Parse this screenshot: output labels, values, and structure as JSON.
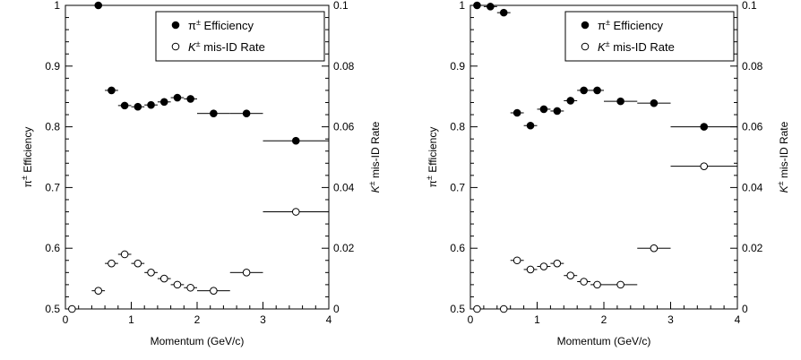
{
  "chart_data": [
    {
      "type": "scatter",
      "title": "",
      "xlabel": "Momentum (GeV/c)",
      "ylabel_left": "π± Efficiency",
      "ylabel_right": "K± mis-ID Rate",
      "xlim": [
        0,
        4
      ],
      "ylim_left": [
        0.5,
        1.0
      ],
      "ylim_right": [
        0,
        0.1
      ],
      "x_ticks": [
        "0",
        "1",
        "2",
        "3",
        "4"
      ],
      "y_ticks_left": [
        "0.5",
        "0.6",
        "0.7",
        "0.8",
        "0.9",
        "1"
      ],
      "y_ticks_right": [
        "0",
        "0.02",
        "0.04",
        "0.06",
        "0.08",
        "0.1"
      ],
      "grid": false,
      "legend_position": "top-right",
      "series": [
        {
          "name": "π± Efficiency",
          "marker": "filled-circle",
          "axis": "left",
          "points": [
            {
              "x": 0.5,
              "y": 1.0,
              "xerr": 0.1
            },
            {
              "x": 0.7,
              "y": 0.86,
              "xerr": 0.1
            },
            {
              "x": 0.9,
              "y": 0.835,
              "xerr": 0.1
            },
            {
              "x": 1.1,
              "y": 0.833,
              "xerr": 0.1
            },
            {
              "x": 1.3,
              "y": 0.836,
              "xerr": 0.1
            },
            {
              "x": 1.5,
              "y": 0.841,
              "xerr": 0.1
            },
            {
              "x": 1.7,
              "y": 0.848,
              "xerr": 0.1
            },
            {
              "x": 1.9,
              "y": 0.846,
              "xerr": 0.1
            },
            {
              "x": 2.25,
              "y": 0.822,
              "xerr": 0.25
            },
            {
              "x": 2.75,
              "y": 0.822,
              "xerr": 0.25
            },
            {
              "x": 3.5,
              "y": 0.777,
              "xerr": 0.5
            }
          ]
        },
        {
          "name": "K± mis-ID Rate",
          "marker": "open-circle",
          "axis": "right",
          "points": [
            {
              "x": 0.1,
              "y": 0.0,
              "xerr": 0.1
            },
            {
              "x": 0.5,
              "y": 0.006,
              "xerr": 0.1
            },
            {
              "x": 0.7,
              "y": 0.015,
              "xerr": 0.1
            },
            {
              "x": 0.9,
              "y": 0.018,
              "xerr": 0.1
            },
            {
              "x": 1.1,
              "y": 0.015,
              "xerr": 0.1
            },
            {
              "x": 1.3,
              "y": 0.012,
              "xerr": 0.1
            },
            {
              "x": 1.5,
              "y": 0.01,
              "xerr": 0.1
            },
            {
              "x": 1.7,
              "y": 0.008,
              "xerr": 0.1
            },
            {
              "x": 1.9,
              "y": 0.007,
              "xerr": 0.1
            },
            {
              "x": 2.25,
              "y": 0.006,
              "xerr": 0.25
            },
            {
              "x": 2.75,
              "y": 0.012,
              "xerr": 0.25
            },
            {
              "x": 3.5,
              "y": 0.032,
              "xerr": 0.5
            }
          ]
        }
      ]
    },
    {
      "type": "scatter",
      "title": "",
      "xlabel": "Momentum (GeV/c)",
      "ylabel_left": "π± Efficiency",
      "ylabel_right": "K± mis-ID Rate",
      "xlim": [
        0,
        4
      ],
      "ylim_left": [
        0.5,
        1.0
      ],
      "ylim_right": [
        0,
        0.1
      ],
      "x_ticks": [
        "0",
        "1",
        "2",
        "3",
        "4"
      ],
      "y_ticks_left": [
        "0.5",
        "0.6",
        "0.7",
        "0.8",
        "0.9",
        "1"
      ],
      "y_ticks_right": [
        "0",
        "0.02",
        "0.04",
        "0.06",
        "0.08",
        "0.1"
      ],
      "grid": false,
      "legend_position": "top-right",
      "series": [
        {
          "name": "π± Efficiency",
          "marker": "filled-circle",
          "axis": "left",
          "points": [
            {
              "x": 0.1,
              "y": 1.0,
              "xerr": 0.1
            },
            {
              "x": 0.3,
              "y": 0.998,
              "xerr": 0.1
            },
            {
              "x": 0.5,
              "y": 0.988,
              "xerr": 0.1
            },
            {
              "x": 0.7,
              "y": 0.823,
              "xerr": 0.1
            },
            {
              "x": 0.9,
              "y": 0.802,
              "xerr": 0.1
            },
            {
              "x": 1.1,
              "y": 0.829,
              "xerr": 0.1
            },
            {
              "x": 1.3,
              "y": 0.826,
              "xerr": 0.1
            },
            {
              "x": 1.5,
              "y": 0.843,
              "xerr": 0.1
            },
            {
              "x": 1.7,
              "y": 0.86,
              "xerr": 0.1
            },
            {
              "x": 1.9,
              "y": 0.86,
              "xerr": 0.1
            },
            {
              "x": 2.25,
              "y": 0.842,
              "xerr": 0.25
            },
            {
              "x": 2.75,
              "y": 0.839,
              "xerr": 0.25
            },
            {
              "x": 3.5,
              "y": 0.8,
              "xerr": 0.5
            }
          ]
        },
        {
          "name": "K± mis-ID Rate",
          "marker": "open-circle",
          "axis": "right",
          "points": [
            {
              "x": 0.1,
              "y": 0.0,
              "xerr": 0.1
            },
            {
              "x": 0.5,
              "y": 0.0,
              "xerr": 0.1
            },
            {
              "x": 0.7,
              "y": 0.016,
              "xerr": 0.1
            },
            {
              "x": 0.9,
              "y": 0.013,
              "xerr": 0.1
            },
            {
              "x": 1.1,
              "y": 0.014,
              "xerr": 0.1
            },
            {
              "x": 1.3,
              "y": 0.015,
              "xerr": 0.1
            },
            {
              "x": 1.5,
              "y": 0.011,
              "xerr": 0.1
            },
            {
              "x": 1.7,
              "y": 0.009,
              "xerr": 0.1
            },
            {
              "x": 1.9,
              "y": 0.008,
              "xerr": 0.1
            },
            {
              "x": 2.25,
              "y": 0.008,
              "xerr": 0.25
            },
            {
              "x": 2.75,
              "y": 0.02,
              "xerr": 0.25
            },
            {
              "x": 3.5,
              "y": 0.047,
              "xerr": 0.5
            }
          ]
        }
      ]
    }
  ]
}
